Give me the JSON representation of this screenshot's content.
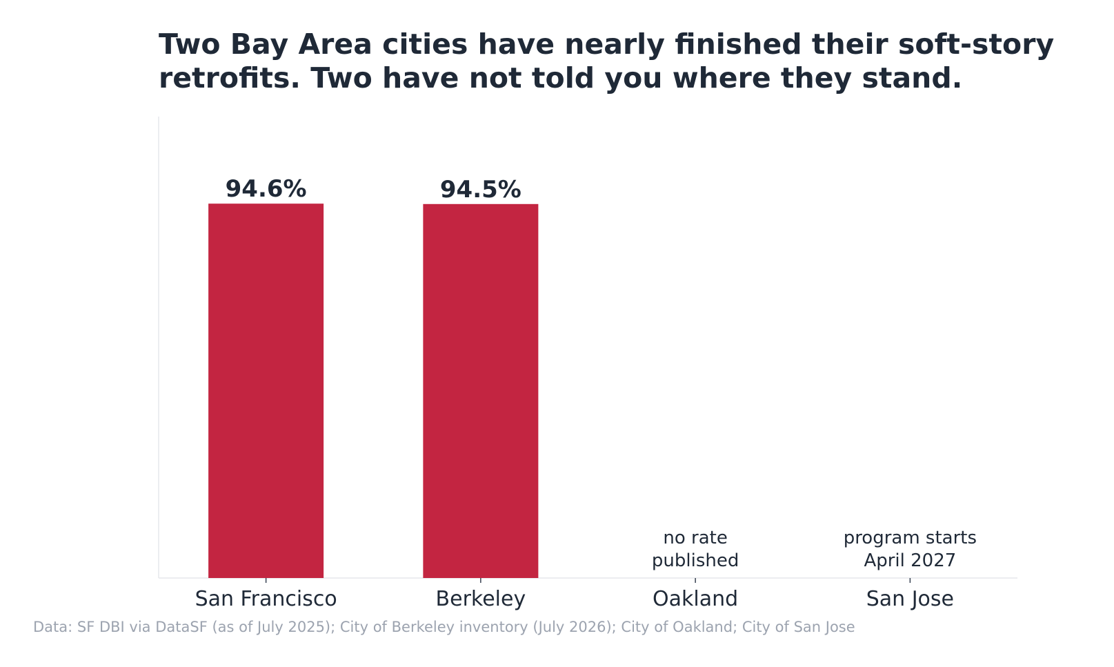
{
  "chart_data": {
    "type": "bar",
    "title_lines": [
      "Two Bay Area cities have nearly finished their soft-story",
      "retrofits. Two have not told you where they stand."
    ],
    "categories": [
      "San Francisco",
      "Berkeley",
      "Oakland",
      "San Jose"
    ],
    "values": [
      94.6,
      94.5,
      null,
      null
    ],
    "value_labels": [
      "94.6%",
      "94.5%",
      "",
      ""
    ],
    "notes": [
      [],
      [],
      [
        "no rate",
        "published"
      ],
      [
        "program starts",
        "April 2027"
      ]
    ],
    "ylim": [
      0,
      116.6
    ],
    "grid": false,
    "legend": "none",
    "bar_color": "#c32541",
    "source": "Data: SF DBI via DataSF (as of July 2025); City of Berkeley inventory (July 2026); City of Oakland; City of San Jose"
  }
}
